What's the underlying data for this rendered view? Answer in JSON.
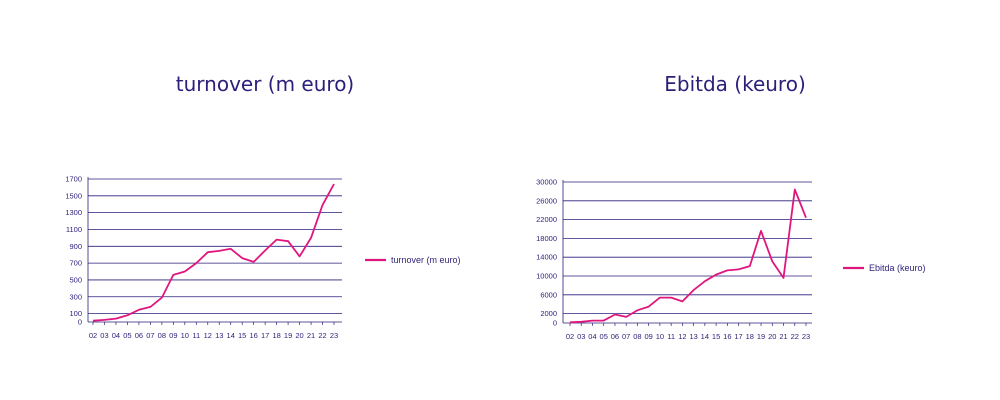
{
  "chart_data": [
    {
      "type": "line",
      "title": "turnover (m euro)",
      "xlabel": "",
      "ylabel": "",
      "categories": [
        "02",
        "03",
        "04",
        "05",
        "06",
        "07",
        "08",
        "09",
        "10",
        "11",
        "12",
        "13",
        "14",
        "15",
        "16",
        "17",
        "18",
        "19",
        "20",
        "21",
        "22",
        "23"
      ],
      "yticks": [
        0,
        100,
        300,
        500,
        700,
        900,
        1100,
        1300,
        1500,
        1700
      ],
      "ylim": [
        0,
        1700
      ],
      "grid": true,
      "legend": "right",
      "colors": {
        "line": "#e0167f",
        "axis": "#2b1f7a",
        "grid": "#2b1f7a"
      },
      "series": [
        {
          "name": "turnover (m euro)",
          "values": [
            15,
            25,
            40,
            80,
            145,
            180,
            290,
            560,
            600,
            700,
            830,
            845,
            870,
            760,
            715,
            850,
            980,
            960,
            780,
            1000,
            1390,
            1640
          ]
        }
      ]
    },
    {
      "type": "line",
      "title": "Ebitda (keuro)",
      "xlabel": "",
      "ylabel": "",
      "categories": [
        "02",
        "03",
        "04",
        "05",
        "06",
        "07",
        "08",
        "09",
        "10",
        "11",
        "12",
        "13",
        "14",
        "15",
        "16",
        "17",
        "18",
        "19",
        "20",
        "21",
        "22",
        "23"
      ],
      "yticks": [
        0,
        2000,
        6000,
        10000,
        14000,
        18000,
        22000,
        26000,
        30000
      ],
      "ylim": [
        0,
        30000
      ],
      "grid": true,
      "legend": "right",
      "colors": {
        "line": "#e0167f",
        "axis": "#2b1f7a",
        "grid": "#2b1f7a"
      },
      "series": [
        {
          "name": "Ebitda (keuro)",
          "values": [
            150,
            250,
            500,
            500,
            1800,
            1300,
            2700,
            3500,
            5400,
            5400,
            4600,
            7000,
            8900,
            10300,
            11200,
            11400,
            12100,
            19600,
            13100,
            9600,
            28400,
            22400
          ]
        }
      ]
    }
  ]
}
